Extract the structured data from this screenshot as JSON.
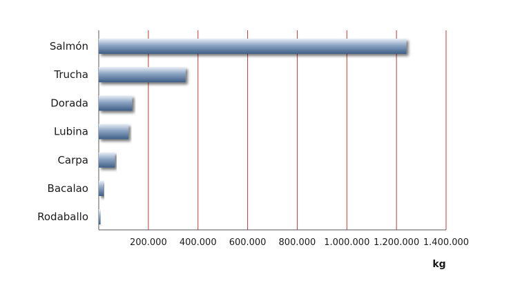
{
  "chart_data": {
    "type": "bar",
    "orientation": "horizontal",
    "categories": [
      "Salmón",
      "Trucha",
      "Dorada",
      "Lubina",
      "Carpa",
      "Bacalao",
      "Rodaballo"
    ],
    "values": [
      1240000,
      350000,
      135000,
      120000,
      65000,
      20000,
      7000
    ],
    "xlim": [
      0,
      1400000
    ],
    "x_ticks": [
      200000,
      400000,
      600000,
      800000,
      1000000,
      1200000,
      1400000
    ],
    "x_tick_labels": [
      "200.000",
      "400.000",
      "600.000",
      "800.000",
      "1.000.000",
      "1.200.000",
      "1.400.000"
    ],
    "unit_label": "kg",
    "grid": "vertical",
    "colors": {
      "bar_light": "#e8eef6",
      "bar_mid": "#8aa3c2",
      "bar_dark": "#3f5f86",
      "gridline": "#c0393b",
      "axis": "#555555"
    }
  }
}
